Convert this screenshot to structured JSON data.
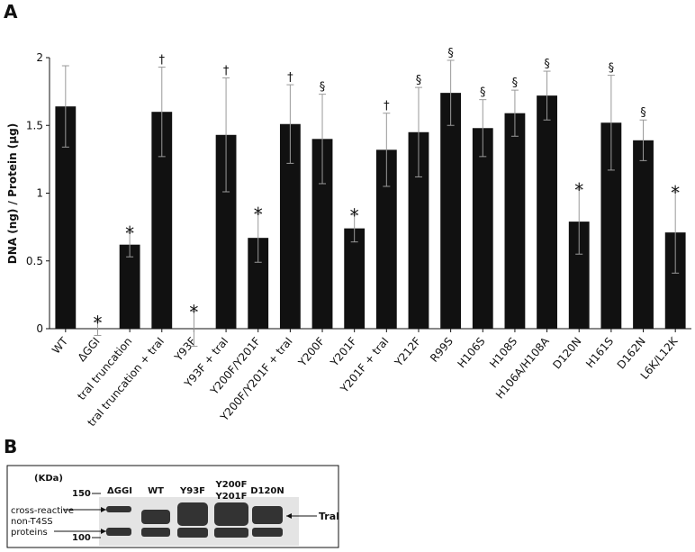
{
  "chart_data": {
    "type": "bar",
    "panel_label": "A",
    "ylabel": "DNA (ng) / Protein (µg)",
    "categories": [
      "WT",
      "ΔGGI",
      "traI truncation",
      "traI truncation + traI",
      "Y93F",
      "Y93F + traI",
      "Y200F/Y201F",
      "Y200F/Y201F + traI",
      "Y200F",
      "Y201F",
      "Y201F + traI",
      "Y212F",
      "R99S",
      "H106S",
      "H108S",
      "H106A/H108A",
      "D120N",
      "H161S",
      "D162N",
      "L6K/L12K"
    ],
    "values": [
      1.64,
      0.0,
      0.62,
      1.6,
      0.0,
      1.43,
      0.67,
      1.51,
      1.4,
      0.74,
      1.32,
      1.45,
      1.74,
      1.48,
      1.59,
      1.72,
      0.79,
      1.52,
      1.39,
      0.71
    ],
    "errors": [
      0.3,
      0.05,
      0.09,
      0.33,
      0.13,
      0.42,
      0.18,
      0.29,
      0.33,
      0.1,
      0.27,
      0.33,
      0.24,
      0.21,
      0.17,
      0.18,
      0.24,
      0.35,
      0.15,
      0.3
    ],
    "markers": [
      "",
      "*",
      "*",
      "†",
      "*",
      "†",
      "*",
      "†",
      "§",
      "*",
      "†",
      "§",
      "§",
      "§",
      "§",
      "§",
      "*",
      "§",
      "§",
      "*"
    ],
    "color": "#111111",
    "error_color": "#999999",
    "ylim": [
      0,
      2
    ],
    "yticks": [
      0,
      0.5,
      1,
      1.5,
      2
    ]
  },
  "panel_b": {
    "label": "B",
    "unit": "(KDa)",
    "mw_markers": [
      "150",
      "100"
    ],
    "lanes": [
      "ΔGGI",
      "WT",
      "Y93F",
      "Y200F Y201F",
      "D120N"
    ],
    "left_note": [
      "cross-reactive",
      "non-T4SS",
      "proteins"
    ],
    "band_label": "TraI"
  }
}
